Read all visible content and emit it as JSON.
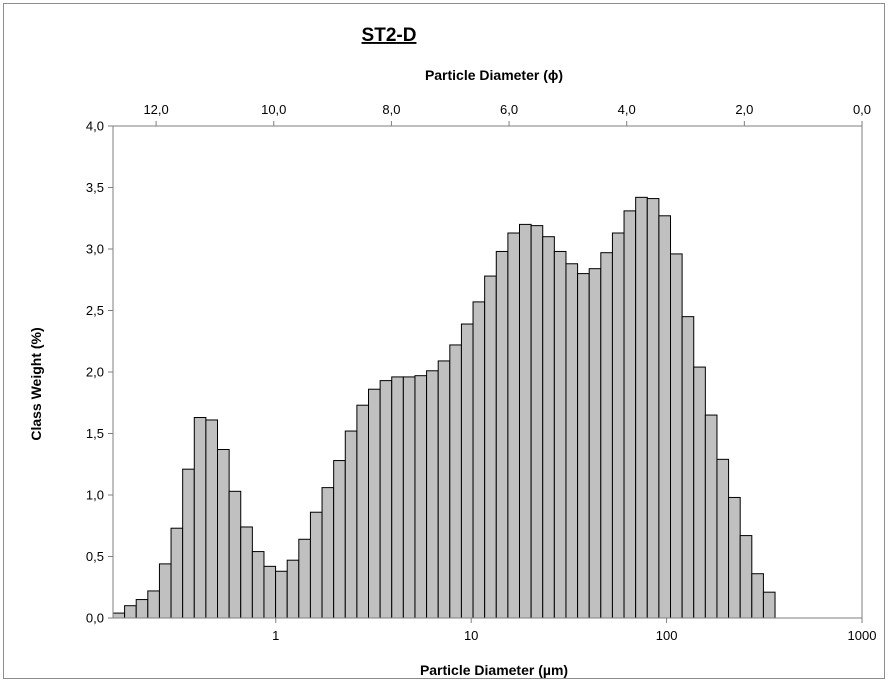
{
  "chart_data": {
    "type": "bar",
    "title": "ST2-D",
    "xlabel_bottom": "Particle Diameter (µm)",
    "xlabel_top": "Particle Diameter (ϕ)",
    "ylabel": "Class Weight (%)",
    "xscale": "log",
    "xlim_um": [
      0.1469,
      1000
    ],
    "ylim": [
      0,
      4.0
    ],
    "grid": false,
    "legend": "none",
    "bar_color": "#c0c0c0",
    "bar_edge_color": "#000000",
    "x_ticks": [
      {
        "value": 1,
        "label": "1"
      },
      {
        "value": 10,
        "label": "10"
      },
      {
        "value": 100,
        "label": "100"
      },
      {
        "value": 1000,
        "label": "1000"
      }
    ],
    "top_ticks": [
      {
        "phi": 12,
        "label": "12,0"
      },
      {
        "phi": 10,
        "label": "10,0"
      },
      {
        "phi": 8,
        "label": "8,0"
      },
      {
        "phi": 6,
        "label": "6,0"
      },
      {
        "phi": 4,
        "label": "4,0"
      },
      {
        "phi": 2,
        "label": "2,0"
      },
      {
        "phi": 0,
        "label": "0,0"
      }
    ],
    "y_ticks": [
      {
        "value": 0,
        "label": "0,0"
      },
      {
        "value": 0.5,
        "label": "0,5"
      },
      {
        "value": 1.0,
        "label": "1,0"
      },
      {
        "value": 1.5,
        "label": "1,5"
      },
      {
        "value": 2.0,
        "label": "2,0"
      },
      {
        "value": 2.5,
        "label": "2,5"
      },
      {
        "value": 3.0,
        "label": "3,0"
      },
      {
        "value": 3.5,
        "label": "3,5"
      },
      {
        "value": 4.0,
        "label": "4,0"
      }
    ],
    "bin_edges_um": [
      0.1469,
      0.1684,
      0.1931,
      0.2214,
      0.2539,
      0.2911,
      0.3338,
      0.3828,
      0.4389,
      0.5033,
      0.5772,
      0.6618,
      0.7589,
      0.8702,
      0.9978,
      1.1441,
      1.3119,
      1.5044,
      1.725,
      1.978,
      2.2682,
      2.6009,
      2.9824,
      3.4198,
      3.9214,
      4.4966,
      5.1561,
      5.9124,
      6.7796,
      7.774,
      8.9143,
      10.2218,
      11.7211,
      13.4403,
      15.4117,
      17.6722,
      20.2643,
      23.2366,
      26.6448,
      30.553,
      35.0343,
      40.173,
      46.0654,
      52.8221,
      60.5698,
      69.454,
      79.641,
      91.3226,
      104.718,
      120.077,
      137.6894,
      157.8854,
      181.0435,
      207.5983,
      238.048,
      272.964,
      313.0,
      358.912
    ],
    "values": [
      0.04,
      0.1,
      0.15,
      0.22,
      0.44,
      0.73,
      1.21,
      1.63,
      1.61,
      1.37,
      1.03,
      0.74,
      0.54,
      0.42,
      0.38,
      0.47,
      0.64,
      0.86,
      1.06,
      1.28,
      1.52,
      1.73,
      1.86,
      1.93,
      1.96,
      1.96,
      1.97,
      2.01,
      2.09,
      2.22,
      2.39,
      2.57,
      2.78,
      2.98,
      3.13,
      3.2,
      3.19,
      3.1,
      2.98,
      2.88,
      2.8,
      2.84,
      2.97,
      3.13,
      3.31,
      3.42,
      3.41,
      3.27,
      2.96,
      2.45,
      2.04,
      1.65,
      1.29,
      0.98,
      0.67,
      0.36,
      0.21
    ]
  }
}
